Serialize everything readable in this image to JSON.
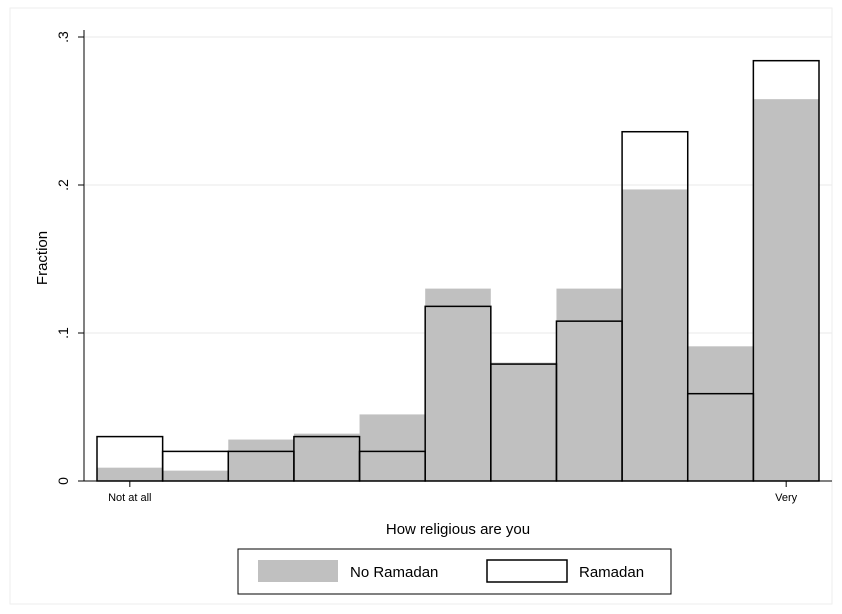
{
  "chart_data": {
    "type": "bar",
    "xlabel": "How religious are you",
    "ylabel": "Fraction",
    "ylim": [
      0,
      0.3
    ],
    "yticks": [
      0,
      0.1,
      0.2,
      0.3
    ],
    "ytick_labels": [
      "0",
      ".1",
      ".2",
      ".3"
    ],
    "xtick_labels": [
      "Not at all",
      "Very"
    ],
    "bins": 11,
    "grid": true,
    "legend_position": "bottom",
    "series": [
      {
        "name": "No Ramadan",
        "style": "filled",
        "color": "#c0c0c0",
        "values": [
          0.009,
          0.007,
          0.028,
          0.032,
          0.045,
          0.13,
          0.08,
          0.13,
          0.197,
          0.091,
          0.258
        ]
      },
      {
        "name": "Ramadan",
        "style": "outline",
        "color": "#000000",
        "values": [
          0.03,
          0.02,
          0.02,
          0.03,
          0.02,
          0.118,
          0.079,
          0.108,
          0.236,
          0.059,
          0.284
        ]
      }
    ]
  }
}
